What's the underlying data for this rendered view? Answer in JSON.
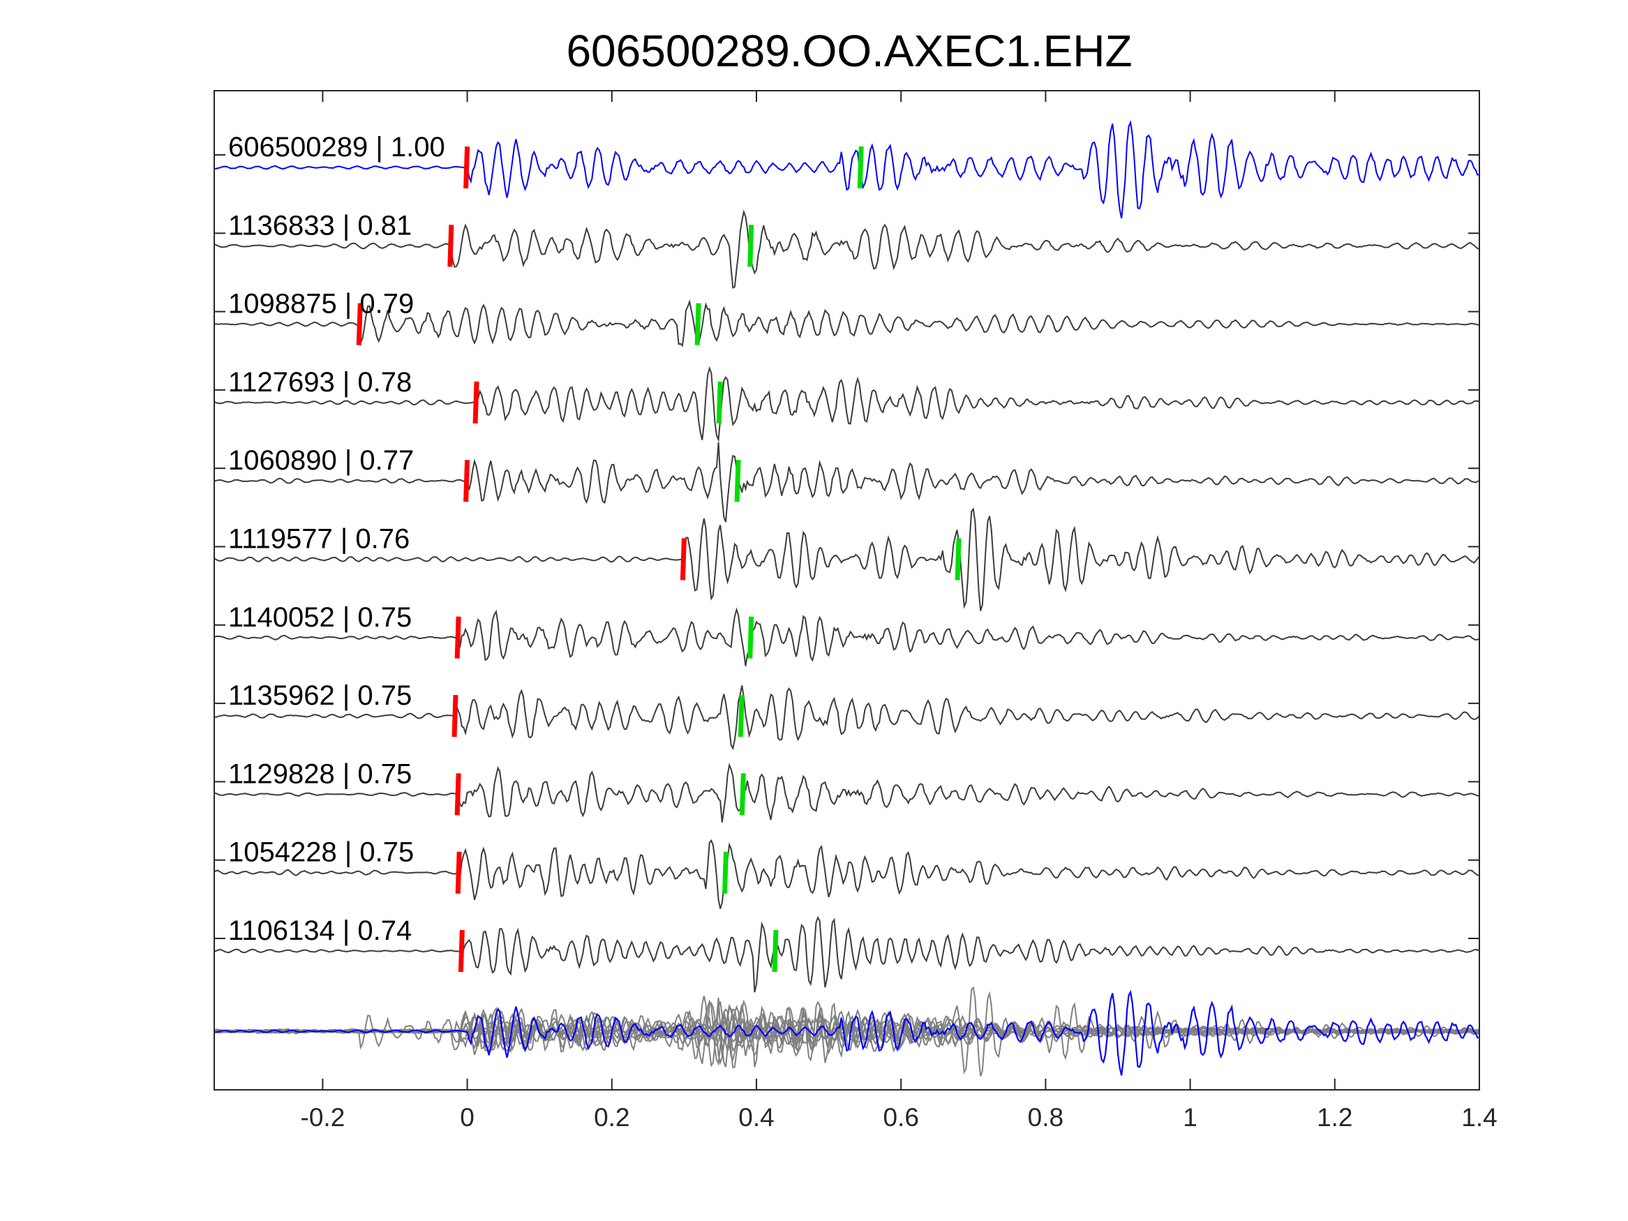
{
  "chart_data": {
    "type": "line",
    "title": "606500289.OO.AXEC1.EHZ",
    "xlabel": "",
    "ylabel": "",
    "xlim": [
      -0.35,
      1.4
    ],
    "x_ticks": [
      -0.2,
      0,
      0.2,
      0.4,
      0.6,
      0.8,
      1,
      1.2,
      1.4
    ],
    "x_tick_labels": [
      "-0.2",
      "0",
      "0.2",
      "0.4",
      "0.6",
      "0.8",
      "1",
      "1.2",
      "1.4"
    ],
    "grid": false,
    "legend": "none",
    "colors": {
      "master": "#0000ff",
      "trace": "#3c3c3c",
      "overlay": "#808080",
      "p_pick": "#ff0000",
      "s_pick": "#00dd00",
      "axes": "#262626"
    },
    "series": [
      {
        "label": "606500289 | 1.00",
        "p_pick": 0.0,
        "s_pick": 0.545,
        "master": true
      },
      {
        "label": "1136833 | 0.81",
        "p_pick": -0.022,
        "s_pick": 0.393
      },
      {
        "label": "1098875 | 0.79",
        "p_pick": -0.148,
        "s_pick": 0.32
      },
      {
        "label": "1127693 | 0.78",
        "p_pick": 0.013,
        "s_pick": 0.35
      },
      {
        "label": "1060890 | 0.77",
        "p_pick": 0.0,
        "s_pick": 0.375
      },
      {
        "label": "1119577 | 0.76",
        "p_pick": 0.3,
        "s_pick": 0.68
      },
      {
        "label": "1140052 | 0.75",
        "p_pick": -0.012,
        "s_pick": 0.393
      },
      {
        "label": "1135962 | 0.75",
        "p_pick": -0.016,
        "s_pick": 0.38
      },
      {
        "label": "1129828 | 0.75",
        "p_pick": -0.012,
        "s_pick": 0.382
      },
      {
        "label": "1054228 | 0.75",
        "p_pick": -0.011,
        "s_pick": 0.358
      },
      {
        "label": "1106134 | 0.74",
        "p_pick": -0.007,
        "s_pick": 0.427
      }
    ],
    "stack": {
      "description_visible": false
    }
  }
}
